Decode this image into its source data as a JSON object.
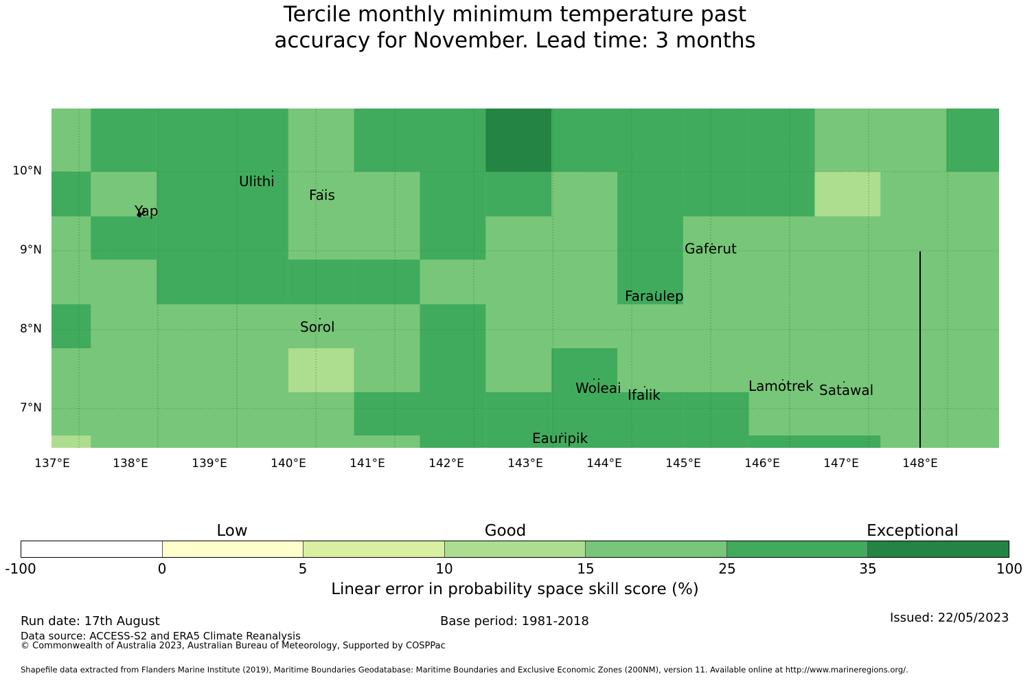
{
  "title_line1": "Tercile monthly minimum temperature past",
  "title_line2": "accuracy for November. Lead time: 3 months",
  "map": {
    "lon_ticks": [
      "137°E",
      "138°E",
      "139°E",
      "140°E",
      "141°E",
      "142°E",
      "143°E",
      "144°E",
      "145°E",
      "146°E",
      "147°E",
      "148°E"
    ],
    "lat_ticks": [
      "10°N",
      "9°N",
      "8°N",
      "7°N"
    ],
    "places": [
      {
        "name": "Ulithi",
        "lon": 139.6,
        "lat": 9.84
      },
      {
        "name": "Yap",
        "lon": 138.2,
        "lat": 9.45
      },
      {
        "name": "Fais",
        "lon": 140.45,
        "lat": 9.67
      },
      {
        "name": "Gaferut",
        "lon": 145.35,
        "lat": 9.0
      },
      {
        "name": "Faraulep",
        "lon": 144.6,
        "lat": 8.4
      },
      {
        "name": "Sorol",
        "lon": 140.38,
        "lat": 8.02
      },
      {
        "name": "Woleai",
        "lon": 143.9,
        "lat": 7.25
      },
      {
        "name": "Ifalik",
        "lon": 144.5,
        "lat": 7.16
      },
      {
        "name": "Lamotrek",
        "lon": 146.25,
        "lat": 7.27
      },
      {
        "name": "Satawal",
        "lon": 147.05,
        "lat": 7.22
      },
      {
        "name": "Eauripik",
        "lon": 143.45,
        "lat": 6.6
      }
    ],
    "legend_colors": [
      "#ffffff",
      "#ffffcc",
      "#d9f0a3",
      "#addd8e",
      "#78c679",
      "#41ab5d",
      "#238443"
    ]
  },
  "colorbar": {
    "categories": [
      "Low",
      "Good",
      "Exceptional"
    ],
    "ticks": [
      "-100",
      "0",
      "5",
      "10",
      "15",
      "25",
      "35",
      "100"
    ],
    "label": "Linear error in probability space skill score (%)"
  },
  "footer": {
    "run_date": "Run date: 17th August",
    "base_period": "Base period: 1981-2018",
    "issued": "Issued: 22/05/2023",
    "data_source": "Data source: ACCESS-S2 and ERA5 Climate Reanalysis",
    "copyright": "© Commonwealth of Australia 2023, Australian Bureau of Meteorology, Supported by COSPPac",
    "shapefile": "Shapefile data extracted from Flanders Marine Institute (2019), Maritime Boundaries Geodatabase: Maritime Boundaries and Exclusive Economic Zones (200NM), version 11. Available online at http://www.marineregions.org/."
  }
}
